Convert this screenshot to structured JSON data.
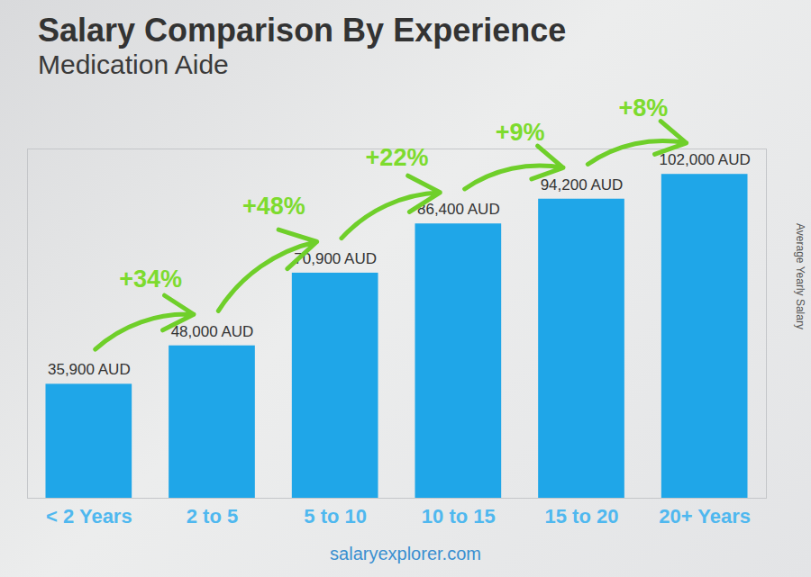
{
  "chart_data": {
    "type": "bar",
    "title": "Salary Comparison By Experience",
    "subtitle": "Medication Aide",
    "categories": [
      "< 2 Years",
      "2 to 5",
      "5 to 10",
      "10 to 15",
      "15 to 20",
      "20+ Years"
    ],
    "values": [
      35900,
      48000,
      70900,
      86400,
      94200,
      102000
    ],
    "value_labels": [
      "35,900 AUD",
      "48,000 AUD",
      "70,900 AUD",
      "86,400 AUD",
      "94,200 AUD",
      "102,000 AUD"
    ],
    "data_labels": true,
    "color": "#1fa6e8",
    "ylim": [
      0,
      110000
    ],
    "y_label": "Average Yearly Salary",
    "annotations": [
      "+34%",
      "+48%",
      "+22%",
      "+9%",
      "+8%"
    ],
    "tick_labels": "x",
    "grid": false,
    "source": "salaryexplorer.com"
  }
}
